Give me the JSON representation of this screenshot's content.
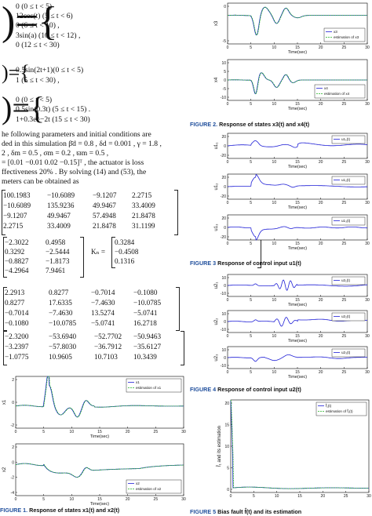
{
  "equations": {
    "lines": [
      {
        "k": "e1a",
        "text": "0            (0 ≤ t < 5)"
      },
      {
        "k": "e1b",
        "text": "12cos(t)    (5 ≤ t < 6)"
      },
      {
        "k": "e1c",
        "text": "0            (6 ≤ t < 10)  ,"
      },
      {
        "k": "e1d",
        "text": "3sin(a)    (10 ≤ t < 12)  ,"
      },
      {
        "k": "e1e",
        "text": "0            (12 ≤ t < 30)"
      },
      {
        "k": "e2a",
        "text": "0.5sin(2t+1)(0 ≤ t < 5)"
      },
      {
        "k": "e2b",
        "text": "1                   (5 ≤ t < 30)  ,"
      },
      {
        "k": "e3a",
        "text": "0                 (0 ≤ t < 5)"
      },
      {
        "k": "e3b",
        "text": "0.5sin(0.3t)  (5 ≤ t < 15)  ."
      },
      {
        "k": "e3c",
        "text": "1+0.3e^−2t    (15 ≤ t < 30)"
      }
    ]
  },
  "body_text": {
    "p1": "he following parameters and initial conditions are",
    "p2": "ded in this simulation β̄d = 0.8 , δd = 0.001 , γ = 1.8 ,",
    "p3": "2   ,     δm = 0.5     ,     σm = 0.2     ,     ϖm = 0.5     ,",
    "p4": "= [0.01   −0.01   0.02   −0.15]ᵀ , the actuator is loss",
    "p5": "ffectiveness 20% .  By solving (14) and (53), the",
    "p6": "meters can be obtained as"
  },
  "matrices": {
    "m1": [
      [
        "100.1983",
        "−10.6089",
        "−9.1207",
        "2.2715"
      ],
      [
        "−10.6089",
        "135.9236",
        "49.9467",
        "33.4009"
      ],
      [
        "−9.1207",
        "49.9467",
        "57.4948",
        "21.8478"
      ],
      [
        "2.2715",
        "33.4009",
        "21.8478",
        "31.1199"
      ]
    ],
    "m2": [
      [
        "−2.3022",
        "0.4958"
      ],
      [
        "0.3292",
        "−2.5444"
      ],
      [
        "−0.8827",
        "−1.8173"
      ],
      [
        "−4.2964",
        "7.9461"
      ]
    ],
    "km_label": "Kₙ =",
    "km": [
      "0.3284",
      "−0.4508",
      "0.1316"
    ],
    "m3": [
      [
        "2.2913",
        "0.8277",
        "−0.7014",
        "−0.1080"
      ],
      [
        "0.8277",
        "17.6335",
        "−7.4630",
        "−10.0785"
      ],
      [
        "−0.7014",
        "−7.4630",
        "13.5274",
        "−5.0741"
      ],
      [
        "−0.1080",
        "−10.0785",
        "−5.0741",
        "16.2718"
      ]
    ],
    "m4": [
      [
        "−2.3200",
        "−53.6940",
        "−52.7702",
        "−50.9463"
      ],
      [
        "−3.2397",
        "−57.8030",
        "−36.7912",
        "−35.6127"
      ],
      [
        "−1.0775",
        "10.9605",
        "10.7103",
        "10.3439"
      ]
    ]
  },
  "figures": {
    "fig1": {
      "caption_num": "FIGURE 1.",
      "caption_text": "Response of states x1(t) and x2(t)",
      "plots": [
        {
          "id": "x1",
          "ylabel": "x1",
          "xlabel": "Time(sec)",
          "yticks": [
            "2",
            "0",
            "-2"
          ],
          "xticks": [
            "0",
            "5",
            "10",
            "15",
            "20",
            "25",
            "30"
          ],
          "legend": [
            "x1",
            "estimation of x1"
          ]
        },
        {
          "id": "x2",
          "ylabel": "x2",
          "xlabel": "Time(sec)",
          "yticks": [
            "2",
            "0",
            "-2",
            "-4"
          ],
          "xticks": [
            "0",
            "5",
            "10",
            "15",
            "20",
            "25",
            "30"
          ],
          "legend": [
            "x2",
            "estimation of x2"
          ]
        }
      ]
    },
    "fig2": {
      "caption_num": "FIGURE 2.",
      "caption_text": "Response of states x3(t) and x4(t)",
      "plots": [
        {
          "id": "x3",
          "ylabel": "x3",
          "xlabel": "Time(sec)",
          "yticks": [
            "0",
            "-5"
          ],
          "xticks": [
            "0",
            "5",
            "10",
            "15",
            "20",
            "25",
            "30"
          ],
          "legend": [
            "x3",
            "estimation of x3"
          ]
        },
        {
          "id": "x4",
          "ylabel": "x4",
          "xlabel": "Time(sec)",
          "yticks": [
            "10",
            "5",
            "0",
            "-5",
            "-10"
          ],
          "xticks": [
            "0",
            "5",
            "10",
            "15",
            "20",
            "25",
            "30"
          ],
          "legend": [
            "x4",
            "estimation of x4"
          ]
        }
      ]
    },
    "fig3": {
      "caption_num": "FIGURE 3",
      "caption_text": "Response of control input u1(t)",
      "plots": [
        {
          "id": "u11",
          "ylabel": "u1₁",
          "xlabel": "Time(sec)",
          "yticks": [
            "20",
            "0",
            "-20"
          ],
          "xticks": [
            "0",
            "5",
            "10",
            "15",
            "20",
            "25",
            "30"
          ],
          "legend": [
            "u1₁(t)"
          ]
        },
        {
          "id": "u12",
          "ylabel": "u1₂",
          "xlabel": "Time(sec)",
          "yticks": [
            "20",
            "0",
            "-20"
          ],
          "xticks": [
            "0",
            "5",
            "10",
            "15",
            "20",
            "25",
            "30"
          ],
          "legend": [
            "u1₂(t)"
          ]
        },
        {
          "id": "u13",
          "ylabel": "u1₃",
          "xlabel": "Time(sec)",
          "yticks": [
            "20",
            "0",
            "-20"
          ],
          "xticks": [
            "0",
            "5",
            "10",
            "15",
            "20",
            "25",
            "30"
          ],
          "legend": [
            "u1₃(t)"
          ]
        }
      ]
    },
    "fig4": {
      "caption_num": "FIGURE 4",
      "caption_text": "Response of control input u2(t)",
      "plots": [
        {
          "id": "u21",
          "ylabel": "u2₁",
          "xlabel": "Time(sec)",
          "yticks": [
            "10",
            "0",
            "-10"
          ],
          "xticks": [
            "0",
            "5",
            "10",
            "15",
            "20",
            "25",
            "30"
          ],
          "legend": [
            "u2₁(t)"
          ]
        },
        {
          "id": "u22",
          "ylabel": "u2₂",
          "xlabel": "Time(sec)",
          "yticks": [
            "10",
            "0",
            "-10"
          ],
          "xticks": [
            "0",
            "5",
            "10",
            "15",
            "20",
            "25",
            "30"
          ],
          "legend": [
            "u2₂(t)"
          ]
        },
        {
          "id": "u23",
          "ylabel": "u2₃",
          "xlabel": "Time(sec)",
          "yticks": [
            "10",
            "0",
            "-10"
          ],
          "xticks": [
            "0",
            "5",
            "10",
            "15",
            "20",
            "25",
            "30"
          ],
          "legend": [
            "u2₃(t)"
          ]
        }
      ]
    },
    "fig5": {
      "caption_num": "FIGURE 5",
      "caption_text": "Bias fault f̂(t) and its estimation",
      "plots": [
        {
          "id": "f",
          "ylabel": "f̂₁ and its estimation",
          "xlabel": "",
          "yticks": [
            "20",
            "15",
            "10",
            "5",
            "0"
          ],
          "xticks": [
            "0",
            "5",
            "10",
            "15",
            "20",
            "25",
            "30"
          ],
          "legend": [
            "f̂₁(t)",
            "estimation of f̂₁(t)"
          ]
        }
      ]
    }
  },
  "colors": {
    "series_true": "#1f1fd6",
    "series_est": "#22b322",
    "caption_blue": "#1f4e9c"
  }
}
